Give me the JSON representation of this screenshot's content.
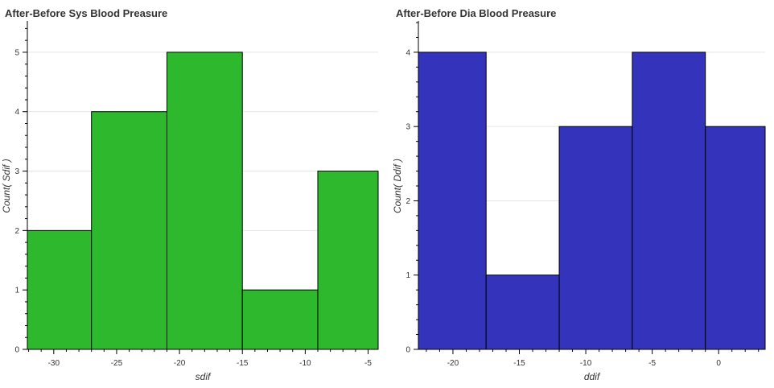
{
  "chart_data": [
    {
      "type": "bar",
      "title": "After-Before Sys Blood Preasure",
      "xlabel": "sdif",
      "ylabel": "Count( Sdif )",
      "color": "#2db82d",
      "bins": [
        {
          "x0": -33,
          "x1": -27,
          "count": 2
        },
        {
          "x0": -27,
          "x1": -21,
          "count": 4
        },
        {
          "x0": -21,
          "x1": -15,
          "count": 5
        },
        {
          "x0": -15,
          "x1": -9,
          "count": 1
        },
        {
          "x0": -9,
          "x1": -4,
          "count": 3
        }
      ],
      "xlim": [
        -32.1,
        -4.2
      ],
      "ylim": [
        0,
        5.5
      ],
      "x_ticks": [
        "-30",
        "-25",
        "-20",
        "-15",
        "-10",
        "-5"
      ],
      "y_ticks": [
        "0",
        "1",
        "2",
        "3",
        "4",
        "5"
      ],
      "grid": "horizontal"
    },
    {
      "type": "bar",
      "title": "After-Before Dia Blood Preasure",
      "xlabel": "ddif",
      "ylabel": "Count( Ddif )",
      "color": "#3333bb",
      "bins": [
        {
          "x0": -23,
          "x1": -17.5,
          "count": 4
        },
        {
          "x0": -17.5,
          "x1": -12,
          "count": 1
        },
        {
          "x0": -12,
          "x1": -6.5,
          "count": 3
        },
        {
          "x0": -6.5,
          "x1": -1,
          "count": 4
        },
        {
          "x0": -1,
          "x1": 4,
          "count": 3
        }
      ],
      "xlim": [
        -22.6,
        3.5
      ],
      "ylim": [
        0,
        4.4
      ],
      "x_ticks": [
        "-20",
        "-15",
        "-10",
        "-5",
        "0"
      ],
      "y_ticks": [
        "0",
        "1",
        "2",
        "3",
        "4"
      ],
      "grid": "horizontal"
    }
  ]
}
